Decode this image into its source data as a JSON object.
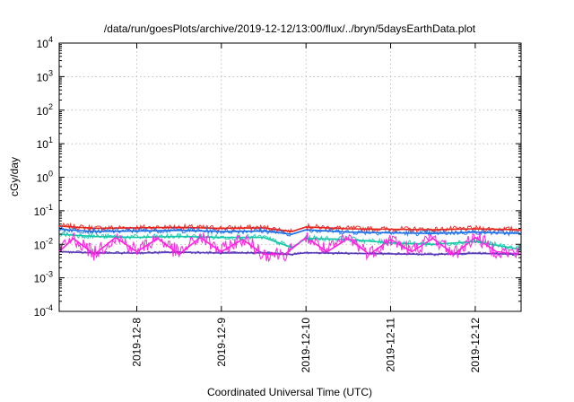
{
  "chart_data": {
    "type": "line",
    "title": "/data/run/goesPlots/archive/2019-12-12/13:00/flux/../bryn/5daysEarthData.plot",
    "xlabel": "Coordinated Universal Time (UTC)",
    "ylabel": "cGy/day",
    "yscale": "log",
    "ylim": [
      0.0001,
      10000
    ],
    "xlim": [
      "2019-12-07T02:00",
      "2019-12-12T13:00"
    ],
    "grid": true,
    "x_ticks": [
      {
        "label": "2019-12-8",
        "value": "2019-12-08T00:00"
      },
      {
        "label": "2019-12-9",
        "value": "2019-12-09T00:00"
      },
      {
        "label": "2019-12-10",
        "value": "2019-12-10T00:00"
      },
      {
        "label": "2019-12-11",
        "value": "2019-12-11T00:00"
      },
      {
        "label": "2019-12-12",
        "value": "2019-12-12T00:00"
      }
    ],
    "y_ticks": [
      {
        "base": "10",
        "exp": "4",
        "value": 10000
      },
      {
        "base": "10",
        "exp": "3",
        "value": 1000
      },
      {
        "base": "10",
        "exp": "2",
        "value": 100
      },
      {
        "base": "10",
        "exp": "1",
        "value": 10
      },
      {
        "base": "10",
        "exp": "0",
        "value": 1
      },
      {
        "base": "10",
        "exp": "-1",
        "value": 0.1
      },
      {
        "base": "10",
        "exp": "-2",
        "value": 0.01
      },
      {
        "base": "10",
        "exp": "-3",
        "value": 0.001
      },
      {
        "base": "10",
        "exp": "-4",
        "value": 0.0001
      }
    ],
    "series": [
      {
        "color": "#e8231c",
        "x": [
          "2019-12-07T02:00",
          "2019-12-07T12:00",
          "2019-12-08T00:00",
          "2019-12-08T12:00",
          "2019-12-09T00:00",
          "2019-12-09T12:00",
          "2019-12-09T20:00",
          "2019-12-10T00:00",
          "2019-12-10T12:00",
          "2019-12-11T00:00",
          "2019-12-11T12:00",
          "2019-12-12T00:00",
          "2019-12-12T13:00"
        ],
        "y": [
          0.035,
          0.03,
          0.031,
          0.032,
          0.03,
          0.031,
          0.024,
          0.033,
          0.029,
          0.028,
          0.027,
          0.029,
          0.027
        ]
      },
      {
        "color": "#1c6fe8",
        "x": [
          "2019-12-07T02:00",
          "2019-12-07T12:00",
          "2019-12-08T00:00",
          "2019-12-08T12:00",
          "2019-12-09T00:00",
          "2019-12-09T12:00",
          "2019-12-09T20:00",
          "2019-12-10T00:00",
          "2019-12-10T12:00",
          "2019-12-11T00:00",
          "2019-12-11T12:00",
          "2019-12-12T00:00",
          "2019-12-12T13:00"
        ],
        "y": [
          0.028,
          0.024,
          0.025,
          0.026,
          0.024,
          0.025,
          0.02,
          0.027,
          0.023,
          0.022,
          0.021,
          0.023,
          0.021
        ]
      },
      {
        "color": "#15c8a8",
        "x": [
          "2019-12-07T02:00",
          "2019-12-07T12:00",
          "2019-12-08T00:00",
          "2019-12-08T12:00",
          "2019-12-09T00:00",
          "2019-12-09T12:00",
          "2019-12-09T20:00",
          "2019-12-10T00:00",
          "2019-12-10T12:00",
          "2019-12-11T00:00",
          "2019-12-11T12:00",
          "2019-12-12T00:00",
          "2019-12-12T13:00"
        ],
        "y": [
          0.02,
          0.017,
          0.016,
          0.017,
          0.016,
          0.016,
          0.008,
          0.015,
          0.014,
          0.011,
          0.01,
          0.012,
          0.007
        ]
      },
      {
        "color": "#5a3db8",
        "x": [
          "2019-12-07T02:00",
          "2019-12-07T12:00",
          "2019-12-08T00:00",
          "2019-12-08T12:00",
          "2019-12-09T00:00",
          "2019-12-09T12:00",
          "2019-12-09T20:00",
          "2019-12-10T00:00",
          "2019-12-10T12:00",
          "2019-12-11T00:00",
          "2019-12-11T12:00",
          "2019-12-12T00:00",
          "2019-12-12T13:00"
        ],
        "y": [
          0.006,
          0.0055,
          0.0055,
          0.0058,
          0.0055,
          0.0056,
          0.005,
          0.0056,
          0.0054,
          0.0052,
          0.005,
          0.0054,
          0.005
        ]
      },
      {
        "color": "#ff22e0",
        "x": [
          "2019-12-07T02:00",
          "2019-12-07T06:00",
          "2019-12-07T12:00",
          "2019-12-07T18:00",
          "2019-12-08T00:00",
          "2019-12-08T06:00",
          "2019-12-08T12:00",
          "2019-12-08T18:00",
          "2019-12-09T00:00",
          "2019-12-09T06:00",
          "2019-12-09T12:00",
          "2019-12-09T18:00",
          "2019-12-10T00:00",
          "2019-12-10T06:00",
          "2019-12-10T12:00",
          "2019-12-10T18:00",
          "2019-12-11T00:00",
          "2019-12-11T06:00",
          "2019-12-11T12:00",
          "2019-12-11T18:00",
          "2019-12-12T00:00",
          "2019-12-12T06:00",
          "2019-12-12T13:00"
        ],
        "y": [
          0.006,
          0.015,
          0.005,
          0.016,
          0.006,
          0.015,
          0.005,
          0.016,
          0.006,
          0.014,
          0.005,
          0.005,
          0.016,
          0.006,
          0.015,
          0.005,
          0.014,
          0.006,
          0.015,
          0.005,
          0.016,
          0.006,
          0.005
        ]
      }
    ]
  }
}
